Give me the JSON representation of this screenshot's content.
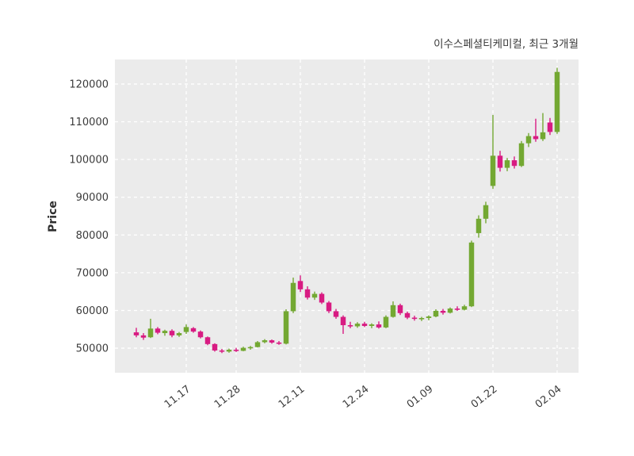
{
  "title": "이수스페셜티케미컬, 최근 3개월",
  "ylabel": "Price",
  "chart_data": {
    "type": "candlestick",
    "title": "이수스페셜티케미컬, 최근 3개월",
    "ylabel": "Price",
    "xlabel": "",
    "ylim": [
      43500,
      126500
    ],
    "y_ticks": [
      50000,
      60000,
      70000,
      80000,
      90000,
      100000,
      110000,
      120000
    ],
    "x_tick_labels": [
      "11.17",
      "11.28",
      "12.11",
      "12.24",
      "01.09",
      "01.22",
      "02.04"
    ],
    "x_tick_indices": [
      7,
      14,
      23,
      32,
      41,
      50,
      59
    ],
    "grid": "white dashed, on",
    "legend": "none",
    "background": "#ebebeb",
    "up_color": "#73a832",
    "down_color": "#d81b82",
    "candles_format": "[open, high, low, close]",
    "candles": [
      [
        54200,
        55400,
        52900,
        53400
      ],
      [
        53400,
        54000,
        52200,
        52800
      ],
      [
        52900,
        57800,
        52700,
        55200
      ],
      [
        55200,
        55600,
        53700,
        54100
      ],
      [
        54000,
        54900,
        53300,
        54600
      ],
      [
        54600,
        55000,
        52900,
        53400
      ],
      [
        53400,
        54300,
        53000,
        54000
      ],
      [
        54300,
        56300,
        53800,
        55600
      ],
      [
        55300,
        55600,
        54100,
        54400
      ],
      [
        54400,
        54700,
        52600,
        52900
      ],
      [
        52900,
        53100,
        50800,
        51100
      ],
      [
        51100,
        51300,
        49100,
        49400
      ],
      [
        49400,
        49800,
        48700,
        49100
      ],
      [
        49100,
        49900,
        48800,
        49600
      ],
      [
        49600,
        50100,
        49000,
        49300
      ],
      [
        49300,
        50400,
        49200,
        50100
      ],
      [
        50100,
        50600,
        49600,
        50300
      ],
      [
        50300,
        51900,
        50200,
        51600
      ],
      [
        51600,
        52400,
        51300,
        52100
      ],
      [
        52100,
        52300,
        51200,
        51500
      ],
      [
        51500,
        51900,
        50900,
        51200
      ],
      [
        51200,
        60300,
        51000,
        59800
      ],
      [
        59800,
        68700,
        59300,
        67300
      ],
      [
        67800,
        69300,
        64900,
        65600
      ],
      [
        65600,
        66400,
        62900,
        63400
      ],
      [
        63400,
        65000,
        62800,
        64400
      ],
      [
        64400,
        64800,
        61700,
        62100
      ],
      [
        62100,
        62500,
        59300,
        59800
      ],
      [
        59800,
        60400,
        57800,
        58300
      ],
      [
        58300,
        58700,
        53800,
        56100
      ],
      [
        56100,
        57000,
        55300,
        55800
      ],
      [
        55800,
        56900,
        55400,
        56500
      ],
      [
        56500,
        57000,
        55600,
        55900
      ],
      [
        55900,
        56600,
        55300,
        56300
      ],
      [
        56300,
        57100,
        55200,
        55500
      ],
      [
        55500,
        58700,
        55300,
        58300
      ],
      [
        58300,
        62400,
        58100,
        61400
      ],
      [
        61400,
        61800,
        58800,
        59300
      ],
      [
        59300,
        59700,
        57700,
        58100
      ],
      [
        58100,
        58600,
        57300,
        57800
      ],
      [
        57800,
        58300,
        57200,
        58000
      ],
      [
        58000,
        58700,
        57400,
        58400
      ],
      [
        58400,
        60300,
        58200,
        59900
      ],
      [
        59900,
        60400,
        58900,
        59400
      ],
      [
        59400,
        60800,
        59200,
        60500
      ],
      [
        60500,
        61100,
        59900,
        60200
      ],
      [
        60200,
        61500,
        60000,
        61100
      ],
      [
        61100,
        78500,
        60900,
        78000
      ],
      [
        80500,
        85200,
        79300,
        84300
      ],
      [
        84300,
        88800,
        83100,
        87900
      ],
      [
        93000,
        111800,
        92200,
        101000
      ],
      [
        101000,
        102300,
        96800,
        97800
      ],
      [
        97800,
        100400,
        96900,
        99800
      ],
      [
        99800,
        100800,
        97600,
        98300
      ],
      [
        98300,
        104900,
        98000,
        104300
      ],
      [
        104300,
        107000,
        103300,
        106200
      ],
      [
        106200,
        110800,
        104700,
        105400
      ],
      [
        105400,
        112300,
        104900,
        107200
      ],
      [
        109800,
        111000,
        106500,
        107300
      ],
      [
        107300,
        124300,
        106800,
        123200
      ]
    ]
  }
}
